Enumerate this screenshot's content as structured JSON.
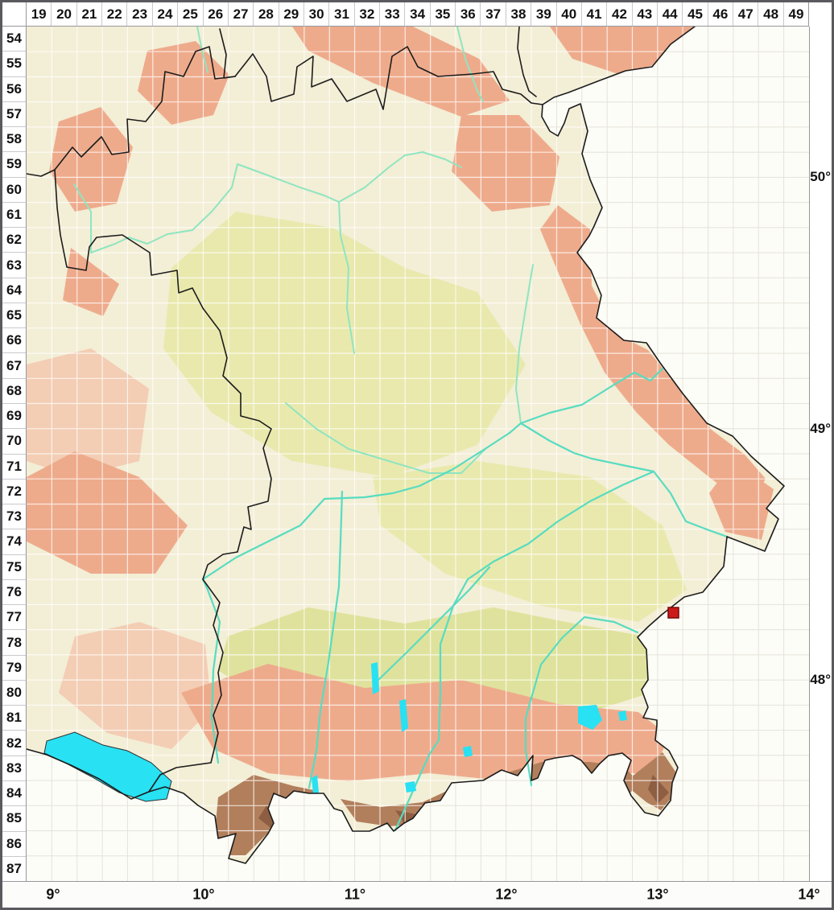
{
  "header": {
    "columns": [
      "19",
      "20",
      "21",
      "22",
      "23",
      "24",
      "25",
      "26",
      "27",
      "28",
      "29",
      "30",
      "31",
      "32",
      "33",
      "34",
      "35",
      "36",
      "37",
      "38",
      "39",
      "40",
      "41",
      "42",
      "43",
      "44",
      "45",
      "46",
      "47",
      "48",
      "49"
    ]
  },
  "left_axis": {
    "rows": [
      "54",
      "55",
      "56",
      "57",
      "58",
      "59",
      "60",
      "61",
      "62",
      "63",
      "64",
      "65",
      "66",
      "67",
      "68",
      "69",
      "70",
      "71",
      "72",
      "73",
      "74",
      "75",
      "76",
      "77",
      "78",
      "79",
      "80",
      "81",
      "82",
      "83",
      "84",
      "85",
      "86",
      "87"
    ]
  },
  "right_axis": {
    "labels": [
      "50°",
      "49°",
      "48°"
    ]
  },
  "bottom_axis": {
    "labels": [
      "9°",
      "10°",
      "11°",
      "12°",
      "13°",
      "14°"
    ]
  },
  "marker": {
    "shape": "square",
    "fill": "#cc1a1a",
    "stroke": "#7a0808"
  },
  "palette": {
    "lowland": "#f3eed6",
    "midland": "#e9e9ae",
    "olive": "#dfe29c",
    "upland": "#eeab8c",
    "pale_pink": "#f3cdb4",
    "alps": "#b27f5c",
    "alps_dark": "#8e5e42",
    "river_north": "#8fe5c0",
    "river_south": "#57dcc0",
    "lake": "#28e1f3",
    "lake_outline": "#2f2f2f",
    "outside": "#fdfdf7",
    "border": "#1c1c1c",
    "grid_on_white": "#e4e4dc",
    "grid_on_terrain": "#ffffff"
  }
}
